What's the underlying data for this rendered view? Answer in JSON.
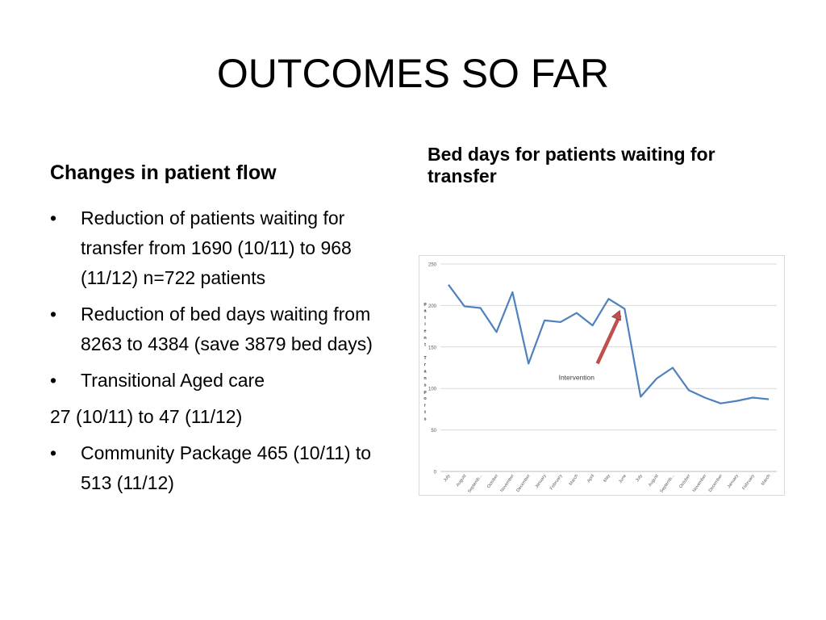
{
  "slide": {
    "title": "OUTCOMES SO FAR",
    "left_heading": "Changes in patient flow",
    "right_heading": "Bed days for patients waiting for transfer"
  },
  "bullets": [
    {
      "type": "bullet",
      "text": "Reduction of patients waiting for transfer from 1690 (10/11) to 968 (11/12) n=722 patients"
    },
    {
      "type": "bullet",
      "text": "Reduction of bed days waiting from 8263 to 4384 (save 3879 bed days)"
    },
    {
      "type": "bullet",
      "text": "Transitional Aged care"
    },
    {
      "type": "plain",
      "text": "27 (10/11) to 47 (11/12)"
    },
    {
      "type": "bullet",
      "text": "Community Package 465 (10/11) to 513 (11/12)"
    }
  ],
  "chart_data": {
    "type": "line",
    "title": "",
    "xlabel": "",
    "ylabel": "patient Transports",
    "ylim": [
      0,
      250
    ],
    "yticks": [
      0,
      50,
      100,
      150,
      200,
      250
    ],
    "grid": true,
    "legend": "none",
    "categories": [
      "July",
      "August",
      "Septemb...",
      "October",
      "November",
      "December",
      "January",
      "February",
      "March",
      "April",
      "May",
      "June",
      "July",
      "August",
      "Septemb...",
      "October",
      "November",
      "December",
      "January",
      "February",
      "March"
    ],
    "series": [
      {
        "values": [
          225,
          199,
          197,
          168,
          216,
          130,
          182,
          180,
          191,
          176,
          208,
          196,
          90,
          112,
          125,
          98,
          89,
          82,
          85,
          89,
          87
        ],
        "color": "#4f81bd"
      }
    ],
    "annotations": [
      {
        "text": "Intervention",
        "from_index": 9.3,
        "from_value": 130,
        "to_index": 10.7,
        "to_value": 194,
        "arrow_color": "#c0504d"
      }
    ]
  }
}
